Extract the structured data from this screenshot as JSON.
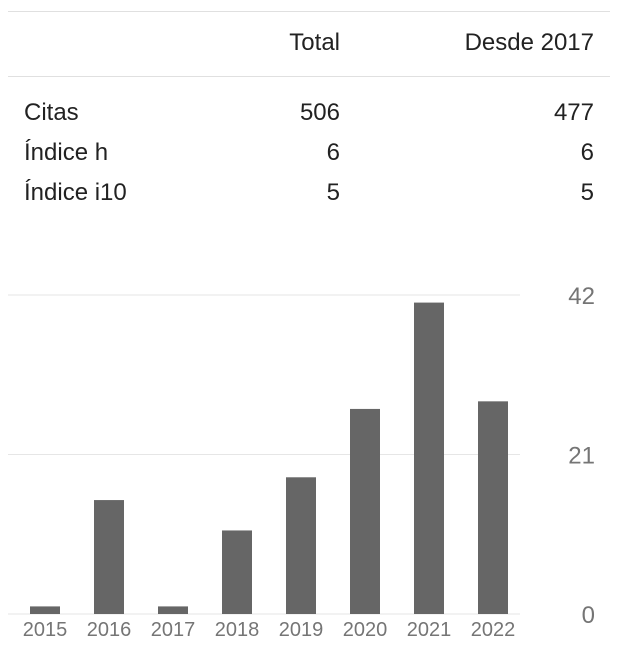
{
  "stats_table": {
    "columns": [
      "",
      "Total",
      "Desde 2017"
    ],
    "rows": [
      {
        "label": "Citas",
        "total": "506",
        "since": "477"
      },
      {
        "label": "Índice h",
        "total": "6",
        "since": "6"
      },
      {
        "label": "Índice i10",
        "total": "5",
        "since": "5"
      }
    ]
  },
  "chart_data": {
    "type": "bar",
    "categories": [
      "2015",
      "2016",
      "2017",
      "2018",
      "2019",
      "2020",
      "2021",
      "2022"
    ],
    "values": [
      1,
      15,
      1,
      11,
      18,
      27,
      41,
      28
    ],
    "y_ticks": [
      "0",
      "21",
      "42"
    ],
    "ylim": [
      0,
      42
    ],
    "grid": true,
    "bar_color": "#666666",
    "grid_color": "#e6e6e6"
  }
}
